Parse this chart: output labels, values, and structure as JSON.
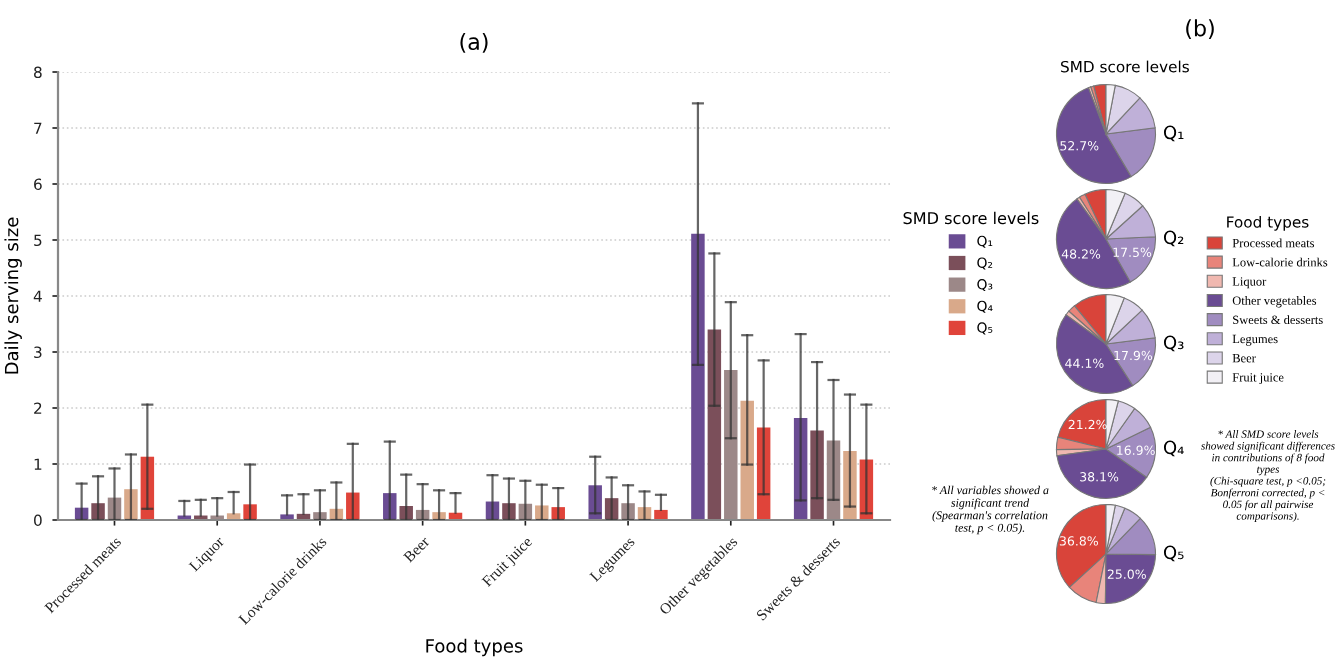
{
  "chart_data": [
    {
      "type": "bar",
      "title": "(a)",
      "xlabel": "Food types",
      "ylabel": "Daily serving size",
      "legend_title": "SMD score levels",
      "legend": "right",
      "grid": "y",
      "categories": [
        "Processed meats",
        "Liquor",
        "Low-calorie drinks",
        "Beer",
        "Fruit juice",
        "Legumes",
        "Other vegetables",
        "Sweets & desserts"
      ],
      "ylim": [
        0,
        8
      ],
      "yticks": [
        0,
        1,
        2,
        3,
        4,
        5,
        6,
        7,
        8
      ],
      "series": [
        {
          "name": "Q₁",
          "color": "#6a4c93",
          "values": [
            0.22,
            0.08,
            0.1,
            0.48,
            0.33,
            0.62,
            5.11,
            1.82
          ],
          "errors": [
            [
              0,
              0.65
            ],
            [
              0.08,
              0.34
            ],
            [
              0.1,
              0.44
            ],
            [
              0,
              1.4
            ],
            [
              0,
              0.8
            ],
            [
              0.12,
              1.13
            ],
            [
              2.77,
              7.44
            ],
            [
              0.35,
              3.32
            ]
          ]
        },
        {
          "name": "Q₂",
          "color": "#7b4f5a",
          "values": [
            0.3,
            0.08,
            0.11,
            0.25,
            0.3,
            0.39,
            3.4,
            1.6
          ],
          "errors": [
            [
              0,
              0.78
            ],
            [
              0.08,
              0.36
            ],
            [
              0.11,
              0.46
            ],
            [
              0,
              0.81
            ],
            [
              0,
              0.74
            ],
            [
              0,
              0.76
            ],
            [
              2.04,
              4.76
            ],
            [
              0.39,
              2.82
            ]
          ]
        },
        {
          "name": "Q₃",
          "color": "#9c8888",
          "values": [
            0.4,
            0.08,
            0.14,
            0.18,
            0.29,
            0.3,
            2.68,
            1.42
          ],
          "errors": [
            [
              0,
              0.92
            ],
            [
              0.08,
              0.39
            ],
            [
              0,
              0.53
            ],
            [
              0,
              0.64
            ],
            [
              0,
              0.7
            ],
            [
              0,
              0.62
            ],
            [
              1.46,
              3.89
            ],
            [
              0.36,
              2.5
            ]
          ]
        },
        {
          "name": "Q₄",
          "color": "#d9a98a",
          "values": [
            0.55,
            0.12,
            0.2,
            0.14,
            0.26,
            0.23,
            2.13,
            1.23
          ],
          "errors": [
            [
              0,
              1.17
            ],
            [
              0.12,
              0.5
            ],
            [
              0,
              0.67
            ],
            [
              0,
              0.53
            ],
            [
              0,
              0.63
            ],
            [
              0,
              0.51
            ],
            [
              0.99,
              3.3
            ],
            [
              0.24,
              2.24
            ]
          ]
        },
        {
          "name": "Q₅",
          "color": "#e0443a",
          "values": [
            1.13,
            0.28,
            0.49,
            0.13,
            0.23,
            0.18,
            1.65,
            1.08
          ],
          "errors": [
            [
              0.2,
              2.06
            ],
            [
              0,
              0.99
            ],
            [
              0,
              1.36
            ],
            [
              0.13,
              0.48
            ],
            [
              0,
              0.57
            ],
            [
              0.18,
              0.45
            ],
            [
              0.46,
              2.85
            ],
            [
              0.12,
              2.06
            ]
          ]
        }
      ],
      "annotations": [
        "* All variables showed a\nsignificant trend\n(Spearman's correlation\ntest, p < 0.05)."
      ]
    },
    {
      "type": "pie",
      "title": "(b)",
      "subtitle": "SMD score levels",
      "legend": "right",
      "legend_title": "Food types",
      "categories": [
        "Processed meats",
        "Low-calorie drinks",
        "Liquor",
        "Other vegetables",
        "Sweets & desserts",
        "Legumes",
        "Beer",
        "Fruit juice"
      ],
      "colors": [
        "#d9443a",
        "#e8847a",
        "#f0b8b0",
        "#6a4c93",
        "#a08cc0",
        "#bfb0d8",
        "#dcd4ea",
        "#f2f0f5"
      ],
      "series": [
        {
          "name": "Q₁",
          "values": [
            4,
            1,
            0.8,
            52.7,
            18.5,
            11,
            9,
            3
          ],
          "value_labels": [
            null,
            null,
            null,
            "52.7%",
            null,
            null,
            null,
            null
          ]
        },
        {
          "name": "Q₂",
          "values": [
            7,
            2,
            1,
            48.2,
            17.5,
            11,
            7,
            6.3
          ],
          "value_labels": [
            null,
            null,
            null,
            "48.2%",
            "17.5%",
            null,
            null,
            null
          ]
        },
        {
          "name": "Q₃",
          "values": [
            11,
            2.5,
            1.5,
            44.1,
            17.9,
            10,
            7,
            6
          ],
          "value_labels": [
            null,
            null,
            null,
            "44.1%",
            "17.9%",
            null,
            null,
            null
          ]
        },
        {
          "name": "Q₄",
          "values": [
            21.2,
            4,
            2,
            38.1,
            16.9,
            8,
            5.8,
            4
          ],
          "value_labels": [
            "21.2%",
            null,
            null,
            "38.1%",
            "16.9%",
            null,
            null,
            null
          ]
        },
        {
          "name": "Q₅",
          "values": [
            36.8,
            10,
            3,
            25.0,
            13,
            6,
            3.2,
            3
          ],
          "value_labels": [
            "36.8%",
            null,
            null,
            "25.0%",
            null,
            null,
            null,
            null
          ]
        }
      ],
      "annotations": [
        "* All SMD score levels\nshowed significant differences\nin contributions of 8 food\ntypes\n(Chi-square test, p <0.05;\nBonferroni corrected, p <\n0.05 for all pairwise\ncomparisons)."
      ]
    }
  ]
}
